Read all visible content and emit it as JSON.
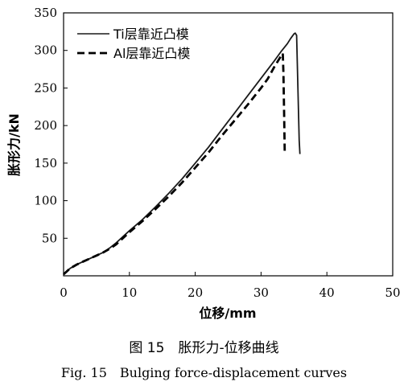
{
  "chart_data": {
    "type": "line",
    "xlabel": "位移/mm",
    "ylabel": "胀形力/kN",
    "xlim": [
      0,
      50
    ],
    "ylim": [
      0,
      350
    ],
    "xticks": [
      0,
      10,
      20,
      30,
      40,
      50
    ],
    "yticks": [
      50,
      100,
      150,
      200,
      250,
      300,
      350
    ],
    "grid": false,
    "legend": "top-left",
    "series": [
      {
        "name": "Ti层靠近凸模",
        "style": "solid",
        "color": "#1a1a1a",
        "x": [
          0,
          0.5,
          1,
          2,
          3,
          4,
          5,
          6,
          7,
          8,
          9,
          10,
          12,
          14,
          16,
          18,
          20,
          22,
          24,
          26,
          28,
          30,
          32,
          33,
          34,
          34.5,
          35,
          35.2,
          35.4,
          35.5,
          35.6,
          35.8,
          35.9
        ],
        "y": [
          2,
          6,
          10,
          15,
          19,
          23,
          27,
          31,
          37,
          44,
          52,
          60,
          75,
          92,
          110,
          129,
          150,
          171,
          194,
          217,
          240,
          263,
          286,
          298,
          309,
          316,
          322,
          323,
          320,
          285,
          250,
          180,
          162
        ]
      },
      {
        "name": "Al层靠近凸模",
        "style": "dashed",
        "color": "#000000",
        "x": [
          0,
          0.5,
          1,
          2,
          3,
          4,
          5,
          6,
          7,
          8,
          9,
          10,
          12,
          14,
          16,
          18,
          20,
          22,
          24,
          26,
          28,
          30,
          31,
          32,
          33,
          33.3,
          33.4,
          33.5,
          33.6
        ],
        "y": [
          2,
          6,
          10,
          15,
          19,
          23,
          27,
          31,
          36,
          42,
          50,
          58,
          73,
          89,
          106,
          124,
          144,
          164,
          186,
          207,
          228,
          250,
          262,
          278,
          292,
          296,
          270,
          220,
          165
        ]
      }
    ]
  },
  "caption_cn": "图 15　胀形力-位移曲线",
  "caption_en": "Fig. 15　Bulging force-displacement curves"
}
